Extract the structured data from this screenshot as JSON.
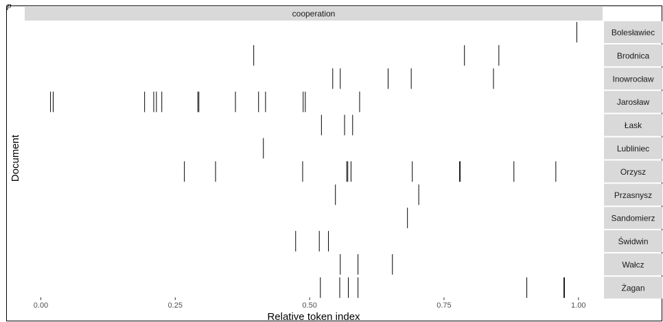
{
  "corner_glyph": "p",
  "chart_data": {
    "type": "strip",
    "facet_title": "cooperation",
    "xlabel": "Relative token index",
    "ylabel": "Document",
    "xlim": [
      -0.03,
      1.045
    ],
    "x_ticks": [
      0.0,
      0.25,
      0.5,
      0.75,
      1.0
    ],
    "x_tick_labels": [
      "0.00",
      "0.25",
      "0.50",
      "0.75",
      "1.00"
    ],
    "colors": {
      "panel_bg": "#ffffff",
      "strip_bg": "#d9d9d9",
      "grid": "#ebebeb",
      "mark": "#000000"
    },
    "rows": [
      {
        "name": "Bolesławiec",
        "values": [
          0.997
        ]
      },
      {
        "name": "Brodnica",
        "values": [
          0.396,
          0.788,
          0.852
        ]
      },
      {
        "name": "Inowrocław",
        "values": [
          0.543,
          0.557,
          0.646,
          0.689,
          0.842
        ]
      },
      {
        "name": "Jarosław",
        "values": [
          0.018,
          0.023,
          0.193,
          0.21,
          0.215,
          0.225,
          0.292,
          0.294,
          0.362,
          0.405,
          0.418,
          0.488,
          0.492,
          0.593
        ]
      },
      {
        "name": "Łask",
        "values": [
          0.522,
          0.565,
          0.58
        ]
      },
      {
        "name": "Lubliniec",
        "values": [
          0.414
        ]
      },
      {
        "name": "Orzysz",
        "values": [
          0.267,
          0.325,
          0.487,
          0.569,
          0.571,
          0.577,
          0.691,
          0.779,
          0.78,
          0.88,
          0.958
        ]
      },
      {
        "name": "Przasnysz",
        "values": [
          0.548,
          0.703
        ]
      },
      {
        "name": "Sandomierz",
        "values": [
          0.682
        ]
      },
      {
        "name": "Świdwin",
        "values": [
          0.474,
          0.518,
          0.535
        ]
      },
      {
        "name": "Wałcz",
        "values": [
          0.557,
          0.59,
          0.654
        ]
      },
      {
        "name": "Żagan",
        "values": [
          0.52,
          0.556,
          0.572,
          0.59,
          0.904,
          0.973,
          0.974
        ]
      }
    ]
  }
}
